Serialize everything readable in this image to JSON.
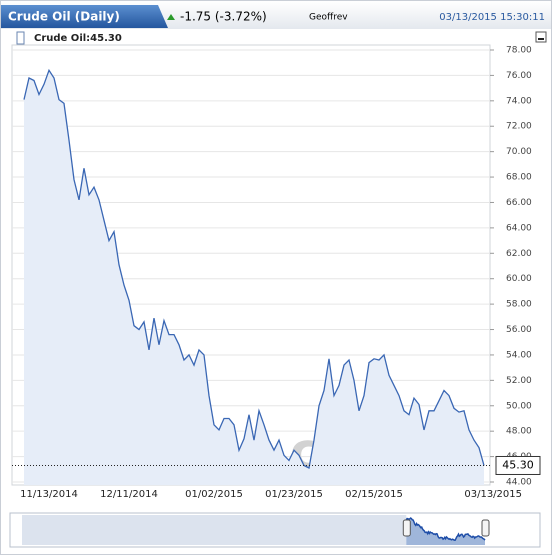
{
  "header": {
    "title": "Crude Oil (Daily)",
    "change": "-1.75 (-3.72%)",
    "user": "Geoffrev",
    "timestamp": "03/13/2015 15:30:11"
  },
  "chart_data": {
    "type": "area",
    "legend": "Crude Oil:45.30",
    "watermark": "Investing.com",
    "last_label": "45.30",
    "color": "#3a67b4",
    "fill": "#e6edf8",
    "categories": [
      null,
      null,
      null,
      null,
      null,
      "11/13/2014",
      null,
      null,
      null,
      null,
      null,
      null,
      null,
      null,
      null,
      null,
      null,
      null,
      null,
      null,
      null,
      "12/11/2014",
      null,
      null,
      null,
      null,
      null,
      null,
      null,
      null,
      null,
      null,
      null,
      null,
      null,
      null,
      null,
      null,
      "01/02/2015",
      null,
      null,
      null,
      null,
      null,
      null,
      null,
      null,
      null,
      null,
      null,
      null,
      null,
      null,
      null,
      "01/23/2015",
      null,
      null,
      null,
      null,
      null,
      null,
      null,
      null,
      null,
      null,
      null,
      null,
      null,
      null,
      null,
      "02/15/2015",
      null,
      null,
      null,
      null,
      null,
      null,
      null,
      null,
      null,
      null,
      null,
      null,
      null,
      null,
      null,
      null,
      null,
      null,
      null,
      null,
      null,
      "03/13/2015"
    ],
    "values": [
      74.1,
      75.8,
      75.6,
      74.5,
      75.3,
      76.4,
      75.8,
      74.1,
      73.8,
      70.9,
      67.8,
      66.2,
      68.7,
      66.6,
      67.2,
      66.2,
      64.6,
      63.0,
      63.7,
      61.1,
      59.5,
      58.3,
      56.3,
      56.0,
      56.6,
      54.4,
      56.9,
      54.8,
      56.7,
      55.6,
      55.6,
      54.8,
      53.6,
      54.0,
      53.2,
      54.4,
      54.0,
      50.8,
      48.5,
      48.1,
      49.0,
      49.0,
      48.5,
      46.5,
      47.4,
      49.3,
      47.3,
      49.6,
      48.5,
      47.3,
      46.5,
      47.3,
      46.1,
      45.7,
      46.5,
      46.1,
      45.3,
      45.1,
      47.3,
      50.0,
      51.2,
      53.7,
      50.8,
      51.6,
      53.2,
      53.6,
      52.0,
      49.6,
      50.8,
      53.4,
      53.7,
      53.6,
      54.0,
      52.4,
      51.6,
      50.8,
      49.6,
      49.3,
      50.6,
      50.1,
      48.1,
      49.6,
      49.6,
      50.4,
      51.2,
      50.8,
      49.8,
      49.5,
      49.6,
      48.1,
      47.3,
      46.7,
      45.3
    ],
    "ylim": [
      44,
      78
    ],
    "yticks": [
      {
        "value": 44,
        "label": "44.00"
      },
      {
        "value": 46,
        "label": "46.00"
      },
      {
        "value": 48,
        "label": "48.00"
      },
      {
        "value": 50,
        "label": "50.00"
      },
      {
        "value": 52,
        "label": "52.00"
      },
      {
        "value": 54,
        "label": "54.00"
      },
      {
        "value": 56,
        "label": "56.00"
      },
      {
        "value": 58,
        "label": "58.00"
      },
      {
        "value": 60,
        "label": "60.00"
      },
      {
        "value": 62,
        "label": "62.00"
      },
      {
        "value": 64,
        "label": "64.00"
      },
      {
        "value": 66,
        "label": "66.00"
      },
      {
        "value": 68,
        "label": "68.00"
      },
      {
        "value": 70,
        "label": "70.00"
      },
      {
        "value": 72,
        "label": "72.00"
      },
      {
        "value": 74,
        "label": "74.00"
      },
      {
        "value": 76,
        "label": "76.00"
      },
      {
        "value": 78,
        "label": "78.00"
      }
    ],
    "grid": true
  }
}
